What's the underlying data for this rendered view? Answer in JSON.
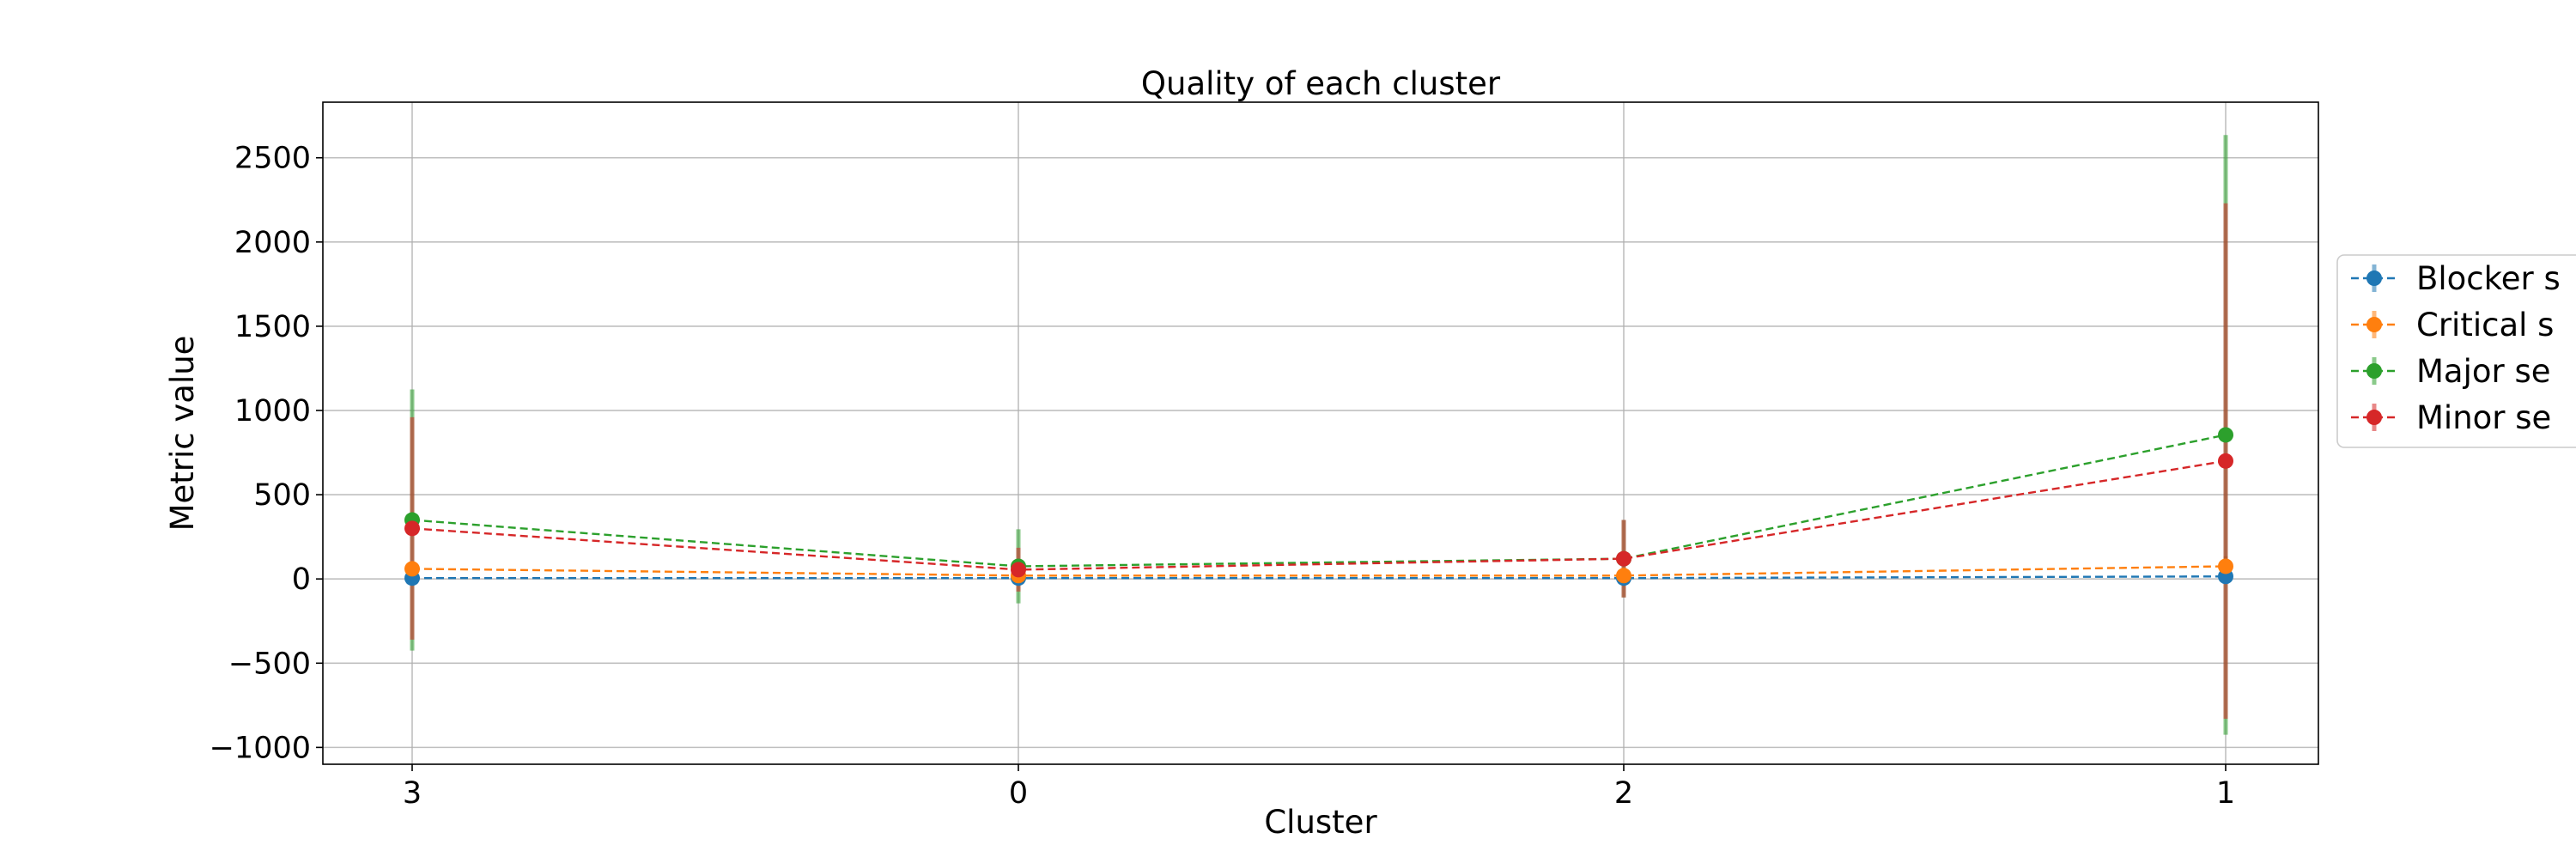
{
  "chart_data": {
    "type": "line",
    "title": "Quality of each cluster",
    "xlabel": "Cluster",
    "ylabel": "Metric value",
    "categories": [
      "3",
      "0",
      "2",
      "1"
    ],
    "ylim": [
      -1100,
      2830
    ],
    "yticks": [
      -1000,
      -500,
      0,
      500,
      1000,
      1500,
      2000,
      2500
    ],
    "ytick_labels": [
      "−1000",
      "−500",
      "0",
      "500",
      "1000",
      "1500",
      "2000",
      "2500"
    ],
    "grid": true,
    "legend_position": "right, outside plot (clipped)",
    "line_style": "dashed with circle markers and error bars",
    "series": [
      {
        "name": "Blocker s",
        "color": "#1f77b4",
        "values": [
          5,
          5,
          5,
          15
        ],
        "errors": [
          10,
          10,
          10,
          20
        ]
      },
      {
        "name": "Critical s",
        "color": "#ff7f0e",
        "values": [
          60,
          20,
          20,
          75
        ],
        "errors": [
          40,
          30,
          30,
          60
        ]
      },
      {
        "name": "Major se",
        "color": "#2ca02c",
        "values": [
          350,
          75,
          120,
          855
        ],
        "errors": [
          775,
          220,
          230,
          1780
        ]
      },
      {
        "name": "Minor se",
        "color": "#d62728",
        "values": [
          300,
          55,
          120,
          700
        ],
        "errors": [
          660,
          130,
          230,
          1530
        ]
      }
    ]
  }
}
